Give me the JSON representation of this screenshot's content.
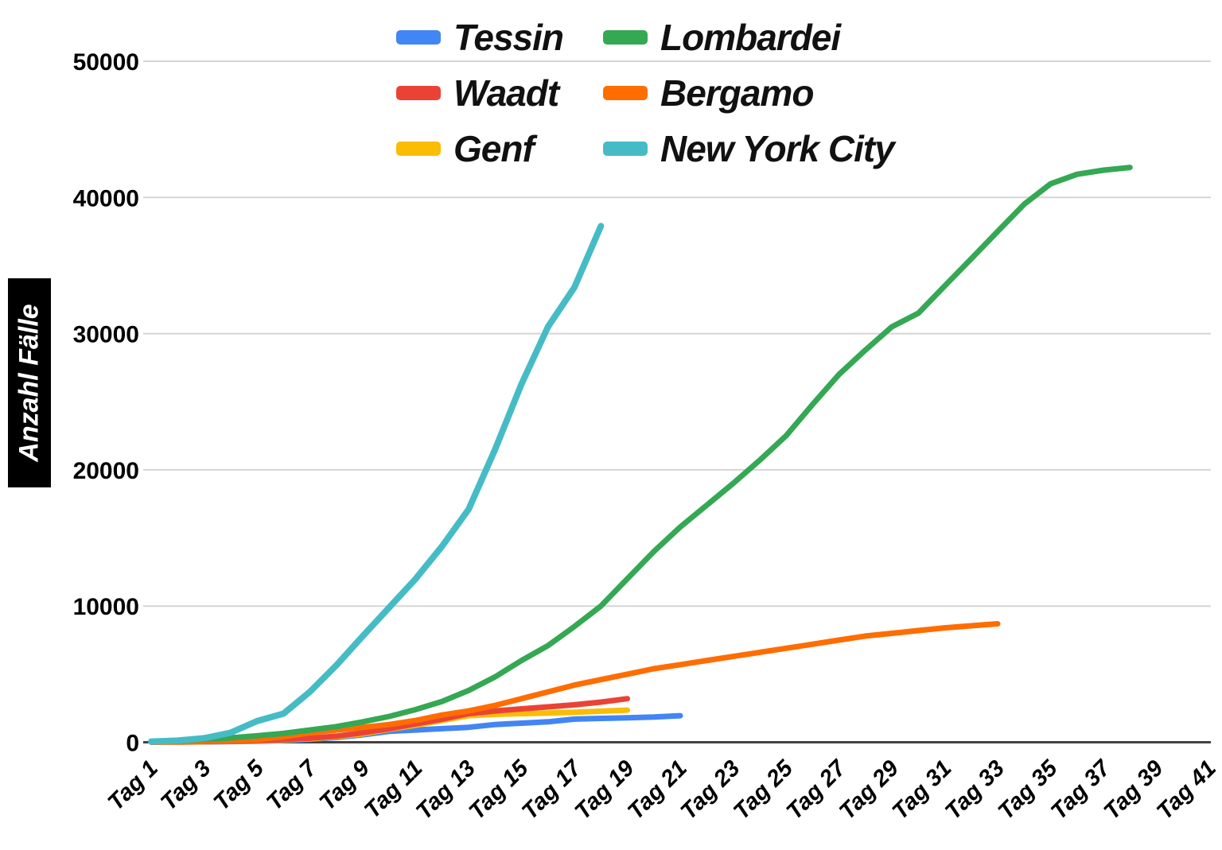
{
  "page": {
    "background": "#ffffff"
  },
  "chart_data": {
    "type": "line",
    "title": "",
    "xlabel": "",
    "ylabel": "Anzahl Fälle",
    "ylim": [
      0,
      50000
    ],
    "yticks": [
      0,
      10000,
      20000,
      30000,
      40000,
      50000
    ],
    "ytick_labels": [
      "0",
      "10000",
      "20000",
      "30000",
      "40000",
      "50000"
    ],
    "x_range_days": [
      1,
      41
    ],
    "x_tick_step": 2,
    "x_tick_labels": [
      "Tag 1",
      "Tag 3",
      "Tag 5",
      "Tag 7",
      "Tag 9",
      "Tag 11",
      "Tag 13",
      "Tag 15",
      "Tag 17",
      "Tag 19",
      "Tag 21",
      "Tag 23",
      "Tag 25",
      "Tag 27",
      "Tag 29",
      "Tag 31",
      "Tag 33",
      "Tag 35",
      "Tag 37",
      "Tag 39",
      "Tag 41"
    ],
    "grid": "horizontal",
    "gridline_color": "#d5d5d5",
    "axis_color": "#424242",
    "legend_position": "top",
    "series": [
      {
        "name": "Tessin",
        "color": "#4285F4",
        "start_day": 1,
        "values": [
          10,
          20,
          30,
          50,
          80,
          120,
          220,
          350,
          550,
          800,
          900,
          1000,
          1100,
          1300,
          1400,
          1500,
          1700,
          1750,
          1800,
          1850,
          1950
        ]
      },
      {
        "name": "Waadt",
        "color": "#EA4335",
        "start_day": 1,
        "values": [
          15,
          30,
          50,
          80,
          130,
          200,
          300,
          450,
          700,
          1000,
          1350,
          1700,
          2100,
          2300,
          2450,
          2600,
          2750,
          2950,
          3200
        ]
      },
      {
        "name": "Genf",
        "color": "#FBBC04",
        "start_day": 1,
        "values": [
          10,
          20,
          40,
          70,
          110,
          170,
          260,
          400,
          620,
          950,
          1250,
          1600,
          1950,
          2050,
          2100,
          2150,
          2200,
          2280,
          2360
        ]
      },
      {
        "name": "Lombardei",
        "color": "#34A853",
        "start_day": 1,
        "values": [
          60,
          120,
          220,
          320,
          470,
          650,
          900,
          1150,
          1500,
          1900,
          2400,
          3000,
          3800,
          4800,
          6000,
          7100,
          8500,
          10000,
          12000,
          14000,
          15800,
          17400,
          19000,
          20700,
          22500,
          24800,
          27000,
          28800,
          30500,
          31500,
          33500,
          35500,
          37500,
          39500,
          41000,
          41700,
          42000,
          42200
        ]
      },
      {
        "name": "Bergamo",
        "color": "#FF6D01",
        "start_day": 1,
        "values": [
          20,
          40,
          70,
          110,
          200,
          400,
          700,
          900,
          1100,
          1300,
          1600,
          2000,
          2300,
          2700,
          3200,
          3700,
          4200,
          4600,
          5000,
          5400,
          5700,
          6000,
          6300,
          6600,
          6900,
          7200,
          7500,
          7800,
          8000,
          8200,
          8400,
          8550,
          8700
        ]
      },
      {
        "name": "New York City",
        "color": "#45BCC5",
        "start_day": 1,
        "values": [
          50,
          120,
          300,
          700,
          1550,
          2100,
          3700,
          5650,
          7800,
          9900,
          12000,
          14400,
          17100,
          21500,
          26300,
          30500,
          33400,
          37900
        ]
      }
    ]
  }
}
